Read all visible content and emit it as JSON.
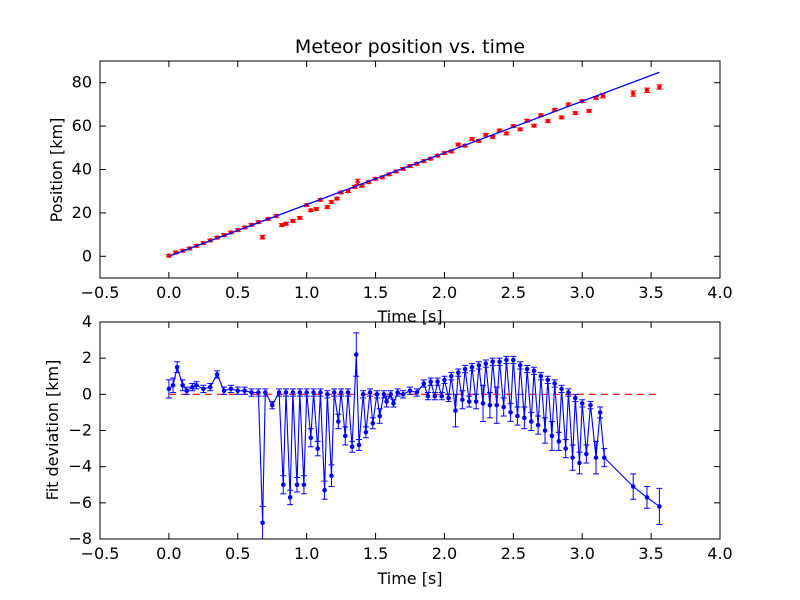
{
  "chart_data": [
    {
      "type": "scatter",
      "title": "Meteor position vs. time",
      "xlabel": "Time [s]",
      "ylabel": "Position [km]",
      "xlim": [
        -0.5,
        4.0
      ],
      "ylim": [
        -10,
        90
      ],
      "xticks": [
        "−0.5",
        "0.0",
        "0.5",
        "1.0",
        "1.5",
        "2.0",
        "2.5",
        "3.0",
        "3.5",
        "4.0"
      ],
      "yticks": [
        "0",
        "20",
        "40",
        "60",
        "80"
      ],
      "grid": false,
      "colors": {
        "points": "#ff0000",
        "fit_line": "#0000ff"
      },
      "fit_line": {
        "x": [
          0.0,
          3.56
        ],
        "y": [
          0.0,
          84.8
        ]
      },
      "series": [
        {
          "x": [
            0.0,
            0.05,
            0.1,
            0.15,
            0.2,
            0.25,
            0.3,
            0.35,
            0.4,
            0.45,
            0.5,
            0.55,
            0.6,
            0.65,
            0.68,
            0.72,
            0.78,
            0.82,
            0.85,
            0.9,
            0.95,
            1.0,
            1.03,
            1.07,
            1.1,
            1.15,
            1.18,
            1.22,
            1.25,
            1.3,
            1.35,
            1.37,
            1.4,
            1.45,
            1.5,
            1.55,
            1.6,
            1.65,
            1.7,
            1.75,
            1.8,
            1.85,
            1.9,
            1.95,
            2.0,
            2.05,
            2.1,
            2.15,
            2.2,
            2.25,
            2.3,
            2.35,
            2.4,
            2.45,
            2.5,
            2.55,
            2.6,
            2.65,
            2.7,
            2.75,
            2.8,
            2.85,
            2.9,
            2.95,
            3.0,
            3.05,
            3.1,
            3.15,
            3.37,
            3.47,
            3.56
          ],
          "y": [
            0.3,
            1.8,
            2.6,
            3.6,
            4.8,
            6.1,
            7.3,
            8.6,
            9.8,
            11.0,
            12.1,
            13.3,
            14.5,
            15.8,
            8.8,
            17.2,
            18.6,
            14.4,
            15.0,
            16.3,
            17.7,
            23.6,
            21.2,
            21.8,
            26.0,
            22.7,
            25.0,
            26.6,
            29.4,
            30.0,
            32.0,
            34.3,
            32.5,
            34.2,
            35.7,
            36.4,
            37.8,
            39.1,
            40.3,
            41.6,
            42.6,
            43.9,
            45.0,
            46.4,
            47.6,
            48.3,
            51.5,
            51.0,
            54.0,
            53.2,
            56.0,
            55.0,
            58.0,
            56.6,
            60.0,
            58.5,
            62.5,
            60.2,
            65.0,
            62.3,
            67.5,
            64.0,
            70.0,
            66.0,
            71.5,
            67.0,
            73.0,
            74.0,
            75.0,
            76.5,
            78.0
          ],
          "err": [
            0.6,
            0.6,
            0.6,
            0.6,
            0.6,
            0.6,
            0.6,
            0.6,
            0.6,
            0.6,
            0.6,
            0.6,
            0.6,
            0.6,
            0.8,
            0.6,
            0.6,
            0.6,
            0.6,
            0.6,
            0.6,
            0.6,
            0.6,
            0.6,
            0.6,
            0.6,
            0.6,
            0.6,
            0.6,
            0.6,
            0.6,
            1.2,
            0.6,
            0.6,
            0.6,
            0.6,
            0.6,
            0.6,
            0.6,
            0.6,
            0.6,
            0.6,
            0.6,
            0.6,
            0.6,
            0.6,
            0.6,
            0.6,
            0.6,
            0.6,
            0.6,
            0.6,
            0.6,
            0.6,
            0.6,
            0.6,
            0.6,
            0.6,
            0.6,
            0.6,
            0.6,
            0.6,
            0.6,
            0.6,
            0.6,
            0.6,
            0.6,
            1.0,
            1.2,
            1.0,
            1.0
          ]
        }
      ]
    },
    {
      "type": "line",
      "title": "",
      "xlabel": "Time [s]",
      "ylabel": "Fit deviation [km]",
      "xlim": [
        -0.5,
        4.0
      ],
      "ylim": [
        -8,
        4
      ],
      "xticks": [
        "−0.5",
        "0.0",
        "0.5",
        "1.0",
        "1.5",
        "2.0",
        "2.5",
        "3.0",
        "3.5",
        "4.0"
      ],
      "yticks": [
        "−8",
        "−6",
        "−4",
        "−2",
        "0",
        "2",
        "4"
      ],
      "grid": false,
      "colors": {
        "series": "#0000ff",
        "zero_line": "#ff0000"
      },
      "zero_line": {
        "x": [
          0.0,
          3.56
        ],
        "y": [
          0,
          0
        ]
      },
      "series": [
        {
          "x": [
            0.0,
            0.03,
            0.06,
            0.1,
            0.13,
            0.17,
            0.2,
            0.25,
            0.3,
            0.35,
            0.4,
            0.45,
            0.5,
            0.55,
            0.6,
            0.65,
            0.68,
            0.7,
            0.75,
            0.8,
            0.83,
            0.85,
            0.88,
            0.9,
            0.93,
            0.95,
            0.98,
            1.0,
            1.03,
            1.05,
            1.08,
            1.1,
            1.13,
            1.15,
            1.18,
            1.2,
            1.23,
            1.25,
            1.28,
            1.3,
            1.33,
            1.36,
            1.38,
            1.41,
            1.43,
            1.46,
            1.48,
            1.51,
            1.53,
            1.56,
            1.58,
            1.61,
            1.63,
            1.66,
            1.7,
            1.75,
            1.8,
            1.85,
            1.88,
            1.9,
            1.93,
            1.95,
            1.98,
            2.0,
            2.03,
            2.05,
            2.08,
            2.1,
            2.13,
            2.15,
            2.18,
            2.2,
            2.23,
            2.25,
            2.28,
            2.3,
            2.33,
            2.35,
            2.38,
            2.4,
            2.43,
            2.45,
            2.48,
            2.5,
            2.53,
            2.55,
            2.58,
            2.6,
            2.63,
            2.65,
            2.68,
            2.7,
            2.73,
            2.75,
            2.78,
            2.8,
            2.83,
            2.85,
            2.88,
            2.9,
            2.93,
            2.95,
            2.98,
            3.0,
            3.03,
            3.06,
            3.1,
            3.13,
            3.16,
            3.37,
            3.47,
            3.56
          ],
          "y": [
            0.3,
            0.5,
            1.5,
            0.5,
            0.2,
            0.4,
            0.5,
            0.3,
            0.4,
            1.1,
            0.2,
            0.3,
            0.2,
            0.2,
            0.1,
            0.1,
            -7.1,
            0.1,
            -0.6,
            0.1,
            -5.0,
            0.1,
            -5.7,
            0.1,
            -5.0,
            0.1,
            -5.0,
            0.1,
            -2.4,
            0.1,
            -3.0,
            0.1,
            -5.3,
            0.0,
            -4.5,
            0.1,
            -1.5,
            0.1,
            -2.3,
            0.1,
            -2.9,
            2.2,
            -2.8,
            0.0,
            -2.1,
            0.1,
            -1.6,
            0.0,
            -1.2,
            0.0,
            -0.4,
            0.0,
            -0.5,
            0.1,
            0.0,
            0.2,
            0.1,
            0.6,
            -0.1,
            0.7,
            -0.1,
            0.7,
            -0.1,
            0.8,
            -0.2,
            1.0,
            -0.9,
            1.2,
            -0.3,
            1.4,
            -0.4,
            1.5,
            -0.4,
            1.6,
            -0.5,
            1.7,
            -0.6,
            1.8,
            -0.6,
            1.8,
            -0.7,
            1.9,
            -1.0,
            1.9,
            -1.2,
            1.6,
            -1.3,
            1.4,
            -1.5,
            1.3,
            -1.7,
            1.0,
            -2.0,
            0.8,
            -2.3,
            0.6,
            -2.6,
            0.3,
            -3.0,
            0.1,
            -3.5,
            -0.2,
            -3.8,
            -0.5,
            -3.3,
            -0.6,
            -3.5,
            -1.0,
            -3.5,
            -5.1,
            -5.7,
            -6.2
          ],
          "err": [
            0.5,
            0.4,
            0.3,
            0.3,
            0.2,
            0.2,
            0.2,
            0.2,
            0.2,
            0.2,
            0.2,
            0.2,
            0.2,
            0.2,
            0.2,
            0.2,
            0.9,
            0.2,
            0.2,
            0.2,
            0.5,
            0.2,
            0.4,
            0.2,
            0.4,
            0.2,
            0.5,
            0.2,
            0.5,
            0.2,
            0.4,
            0.2,
            0.5,
            0.2,
            0.6,
            0.2,
            0.4,
            0.2,
            0.5,
            0.2,
            0.3,
            1.2,
            0.3,
            0.2,
            0.3,
            0.2,
            0.3,
            0.2,
            0.4,
            0.2,
            0.3,
            0.2,
            0.2,
            0.2,
            0.2,
            0.2,
            0.2,
            0.2,
            0.2,
            0.2,
            0.2,
            0.2,
            0.2,
            0.2,
            0.2,
            0.2,
            0.9,
            0.2,
            0.5,
            0.2,
            0.3,
            0.2,
            0.4,
            0.2,
            1.0,
            0.2,
            0.7,
            0.2,
            1.0,
            0.2,
            0.5,
            0.2,
            0.5,
            0.2,
            0.5,
            0.2,
            0.6,
            0.2,
            0.5,
            0.2,
            0.5,
            0.2,
            0.7,
            0.2,
            0.8,
            0.2,
            0.5,
            0.2,
            0.5,
            0.2,
            0.7,
            0.2,
            0.6,
            0.2,
            0.5,
            0.2,
            0.9,
            0.3,
            0.5,
            0.7,
            0.6,
            1.0
          ]
        }
      ]
    }
  ]
}
